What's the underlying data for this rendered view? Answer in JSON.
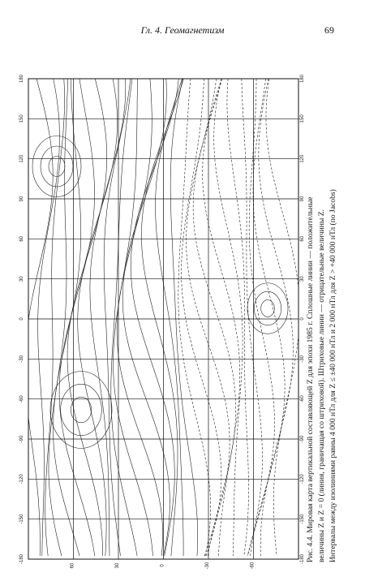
{
  "header": {
    "title": "Гл. 4. Геомагнетизм",
    "page": "69"
  },
  "map": {
    "longitude_labels": [
      "180",
      "150",
      "120",
      "90",
      "60",
      "30",
      "0",
      "-30",
      "-60",
      "-90",
      "-120",
      "-150",
      "-180"
    ],
    "latitude_labels": [
      "60",
      "30",
      "0",
      "-30",
      "-60"
    ]
  },
  "caption": {
    "lines": [
      "Рис. 4.4. Мировая карта вертикальной составляющей Z для эпохи 1985 г. Сплошные линии — положительные",
      "величины Z и Z = 0 (линия, граничащая со штриховой). Штриховые линии — отрицательные величины Z.",
      "Интервалы между изолиниями равны 4 000 нТл для Z ≤ ±40 000 нТл и 2 000 нТл для Z > +40 000 нТл (по Jacobs)"
    ]
  }
}
